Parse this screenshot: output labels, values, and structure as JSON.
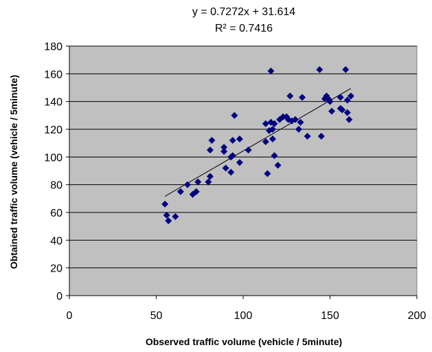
{
  "chart_data": {
    "type": "scatter",
    "title": "y = 0.7272x + 31.614",
    "subtitle": "R² = 0.7416",
    "trendline": {
      "slope": 0.7272,
      "intercept": 31.614
    },
    "xlabel": "Observed traffic volume (vehicle / 5minute)",
    "ylabel": "Obtained traffic volume (vehicle / 5minute)",
    "xlim": [
      0,
      200
    ],
    "xticks": [
      0,
      50,
      100,
      150,
      200
    ],
    "ylim": [
      0,
      180
    ],
    "yticks": [
      0,
      20,
      40,
      60,
      80,
      100,
      120,
      140,
      160,
      180
    ],
    "grid": true,
    "color": "#000080",
    "background": "#c0c0c0",
    "x": [
      55,
      56,
      57,
      61,
      64,
      68,
      71,
      73,
      74,
      80,
      81,
      81,
      82,
      89,
      89,
      90,
      93,
      93,
      94,
      94,
      95,
      98,
      98,
      103,
      113,
      113,
      114,
      115,
      116,
      116,
      117,
      117,
      118,
      118,
      120,
      121,
      123,
      125,
      126,
      127,
      128,
      130,
      132,
      133,
      134,
      137,
      144,
      145,
      147,
      148,
      149,
      150,
      151,
      156,
      156,
      157,
      159,
      160,
      160,
      161,
      162
    ],
    "y": [
      66,
      58,
      54,
      57,
      75,
      80,
      73,
      75,
      82,
      82,
      86,
      105,
      112,
      107,
      104,
      92,
      89,
      100,
      101,
      112,
      130,
      113,
      96,
      105,
      124,
      111,
      88,
      119,
      162,
      125,
      120,
      113,
      101,
      124,
      94,
      127,
      129,
      129,
      127,
      144,
      126,
      127,
      120,
      125,
      143,
      115,
      163,
      115,
      142,
      144,
      142,
      140,
      133,
      143,
      135,
      134,
      163,
      132,
      141,
      127,
      144
    ]
  }
}
